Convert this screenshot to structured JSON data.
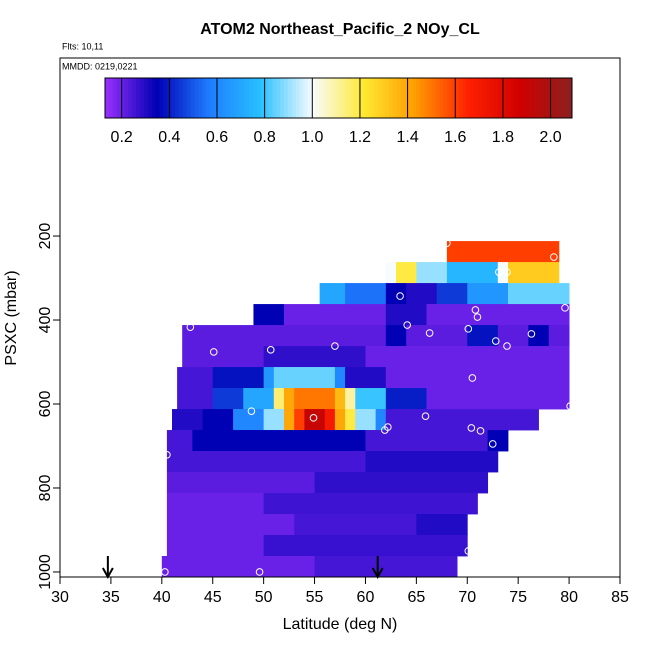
{
  "chart_data": {
    "type": "heatmap",
    "title": "ATOM2 Northeast_Pacific_2 NOy_CL",
    "flights": "Flts: 10,11",
    "dates": "MMDD: 0219,0221",
    "xlabel": "Latitude (deg N)",
    "ylabel": "PSXC (mbar)",
    "xlim": [
      30,
      85
    ],
    "ylim": [
      1012,
      -224
    ],
    "xticks": [
      30,
      35,
      40,
      45,
      50,
      55,
      60,
      65,
      70,
      75,
      80,
      85
    ],
    "yticks": [
      200,
      400,
      600,
      800,
      1000
    ],
    "colorbar": {
      "lim": [
        0.13,
        2.09
      ],
      "ticks": [
        0.2,
        0.4,
        0.6,
        0.8,
        {
          "value": 1,
          "label": "1.0"
        },
        1.2,
        1.4,
        1.6,
        1.8,
        {
          "value": 2,
          "label": "2.0"
        }
      ],
      "colors": [
        "#9b30ff",
        "#0000b4",
        "#1e7cff",
        "#28c0ff",
        "#f8fcff",
        "#ffe830",
        "#ff9a00",
        "#ff2000",
        "#d00000",
        "#8b2020"
      ]
    },
    "rows": [
      {
        "p": [
          212,
          262
        ],
        "edges": [
          68,
          79
        ],
        "values": [
          1.6
        ]
      },
      {
        "p": [
          262,
          312
        ],
        "edges": [
          62,
          63,
          65,
          68,
          73,
          74,
          79
        ],
        "values": [
          1.0,
          1.2,
          0.9,
          0.75,
          1.0,
          1.3
        ]
      },
      {
        "p": [
          312,
          362
        ],
        "edges": [
          55.5,
          58,
          62,
          64,
          67,
          70,
          74,
          80
        ],
        "values": [
          0.7,
          0.55,
          0.35,
          0.3,
          0.45,
          0.65,
          0.85
        ]
      },
      {
        "p": [
          362,
          412
        ],
        "edges": [
          49,
          52,
          62,
          66,
          80
        ],
        "values": [
          0.35,
          0.2,
          0.3,
          0.2
        ]
      },
      {
        "p": [
          412,
          462
        ],
        "edges": [
          42,
          62,
          64,
          70,
          73,
          76,
          78,
          80
        ],
        "values": [
          0.22,
          0.35,
          0.22,
          0.38,
          0.22,
          0.35,
          0.22
        ]
      },
      {
        "p": [
          462,
          512
        ],
        "edges": [
          42,
          50,
          60,
          80
        ],
        "values": [
          0.22,
          0.28,
          0.2
        ]
      },
      {
        "p": [
          512,
          562
        ],
        "edges": [
          41.5,
          45,
          50,
          51,
          57,
          58,
          62,
          80
        ],
        "values": [
          0.25,
          0.38,
          0.65,
          0.85,
          0.6,
          0.3,
          0.2
        ]
      },
      {
        "p": [
          562,
          612
        ],
        "edges": [
          41.5,
          45,
          48,
          51,
          52,
          53,
          57,
          58,
          59,
          62,
          66,
          80
        ],
        "values": [
          0.25,
          0.45,
          0.7,
          1.15,
          1.4,
          1.5,
          1.35,
          1.1,
          0.8,
          0.4,
          0.2
        ]
      },
      {
        "p": [
          612,
          662
        ],
        "edges": [
          41,
          44,
          47,
          50,
          52,
          53,
          54,
          56,
          57,
          58,
          59,
          61,
          62,
          77
        ],
        "values": [
          0.3,
          0.35,
          0.6,
          0.9,
          1.4,
          1.6,
          1.9,
          1.7,
          1.4,
          1.2,
          0.9,
          0.6,
          0.25
        ]
      },
      {
        "p": [
          662,
          712
        ],
        "edges": [
          40.5,
          43,
          60,
          72,
          74
        ],
        "values": [
          0.25,
          0.35,
          0.25,
          0.35
        ]
      },
      {
        "p": [
          712,
          762
        ],
        "edges": [
          40.5,
          60,
          73
        ],
        "values": [
          0.25,
          0.3
        ]
      },
      {
        "p": [
          762,
          812
        ],
        "edges": [
          40.5,
          55,
          72
        ],
        "values": [
          0.22,
          0.28
        ]
      },
      {
        "p": [
          812,
          862
        ],
        "edges": [
          40.5,
          50,
          71
        ],
        "values": [
          0.2,
          0.26
        ]
      },
      {
        "p": [
          862,
          912
        ],
        "edges": [
          40.5,
          53,
          65,
          70
        ],
        "values": [
          0.2,
          0.25,
          0.3
        ]
      },
      {
        "p": [
          912,
          962
        ],
        "edges": [
          40.5,
          50,
          70
        ],
        "values": [
          0.2,
          0.27
        ]
      },
      {
        "p": [
          962,
          1012
        ],
        "edges": [
          40,
          55,
          69
        ],
        "values": [
          0.2,
          0.25
        ]
      }
    ],
    "points": {
      "x": [
        68.0,
        78.5,
        63.4,
        73.1,
        73.9,
        79.6,
        70.8,
        71.0,
        42.8,
        64.1,
        66.3,
        70.1,
        72.8,
        73.9,
        76.3,
        45.1,
        50.7,
        57.0,
        70.5,
        48.8,
        54.9,
        61.9,
        62.2,
        65.9,
        80.1,
        70.4,
        71.3,
        72.5,
        75.9,
        40.5,
        70.1,
        71.8,
        40.3,
        49.6,
        71.2
      ],
      "y": [
        217,
        250,
        343,
        286,
        286,
        371,
        376,
        393,
        417,
        412,
        431,
        421,
        450,
        462,
        433,
        476,
        471,
        462,
        538,
        617,
        633,
        662,
        655,
        629,
        605,
        657,
        664,
        695,
        681,
        721,
        950,
        938,
        1000,
        1000,
        1002
      ]
    },
    "arrows": [
      34.7,
      61.2
    ]
  }
}
